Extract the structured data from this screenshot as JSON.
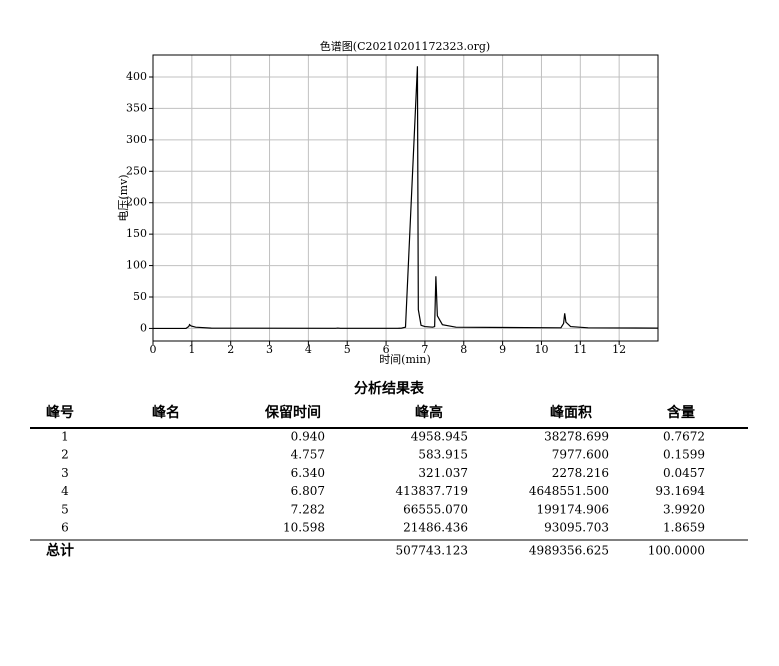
{
  "chart_data": {
    "type": "line",
    "title": "色谱图(C20210201172323.org)",
    "x_label": "时间(min)",
    "y_label": "电压(mv)",
    "x": [
      0,
      0.85,
      0.92,
      0.94,
      0.98,
      1.1,
      1.5,
      4.7,
      4.757,
      4.82,
      6.3,
      6.34,
      6.4,
      6.5,
      6.807,
      6.83,
      6.9,
      7.0,
      7.2,
      7.25,
      7.282,
      7.32,
      7.45,
      7.8,
      10.5,
      10.57,
      10.598,
      10.63,
      10.75,
      11.2,
      13
    ],
    "values": [
      0,
      0,
      3,
      6,
      4,
      2,
      0.5,
      0.2,
      0.6,
      0.2,
      0.2,
      0.3,
      0.5,
      2,
      417,
      30,
      5,
      3,
      2,
      3,
      83,
      20,
      6,
      2,
      1,
      8,
      24,
      10,
      3,
      1,
      0.5
    ],
    "color": "#000000",
    "xlim": [
      0,
      13
    ],
    "xticks": [
      0,
      1,
      2,
      3,
      4,
      5,
      6,
      7,
      8,
      9,
      10,
      11,
      12
    ],
    "ylim": [
      -20,
      435
    ],
    "yticks": [
      0,
      50,
      100,
      150,
      200,
      250,
      300,
      350,
      400
    ],
    "grid": true
  },
  "table": {
    "title": "分析结果表",
    "header": [
      "峰号",
      "峰名",
      "保留时间",
      "峰高",
      "峰面积",
      "含量"
    ],
    "rows": [
      [
        "1",
        "",
        "0.940",
        "4958.945",
        "38278.699",
        "0.7672"
      ],
      [
        "2",
        "",
        "4.757",
        "583.915",
        "7977.600",
        "0.1599"
      ],
      [
        "3",
        "",
        "6.340",
        "321.037",
        "2278.216",
        "0.0457"
      ],
      [
        "4",
        "",
        "6.807",
        "413837.719",
        "4648551.500",
        "93.1694"
      ],
      [
        "5",
        "",
        "7.282",
        "66555.070",
        "199174.906",
        "3.9920"
      ],
      [
        "6",
        "",
        "10.598",
        "21486.436",
        "93095.703",
        "1.8659"
      ]
    ],
    "total": {
      "label": "总计",
      "height": "507743.123",
      "area": "4989356.625",
      "content": "100.0000"
    }
  }
}
